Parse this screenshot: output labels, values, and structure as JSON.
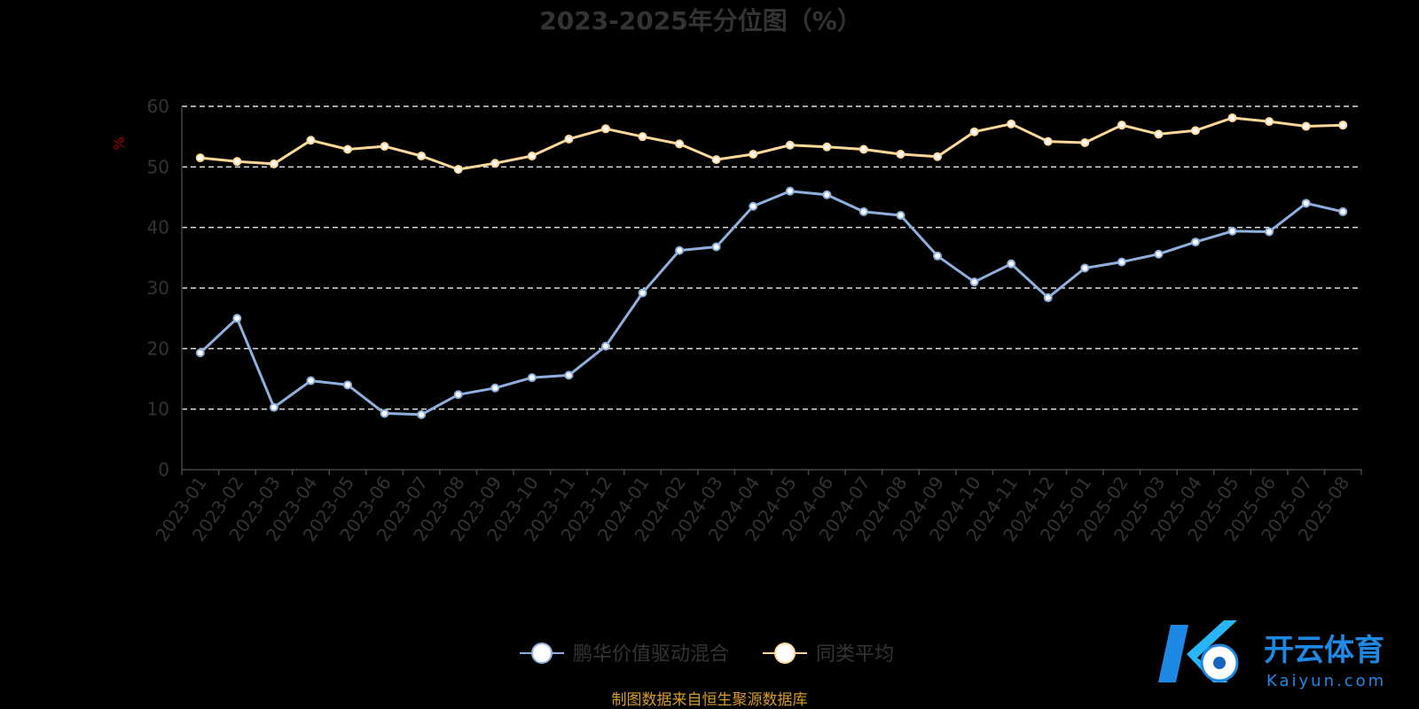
{
  "chart_data": {
    "type": "line",
    "title": "2023-2025年分位图（%）",
    "ylabel": "%",
    "ylim": [
      0,
      60
    ],
    "yticks": [
      0,
      10,
      20,
      30,
      40,
      50,
      60
    ],
    "grid": true,
    "legend_placement": "bottom-center",
    "x": [
      "2023-01",
      "2023-02",
      "2023-03",
      "2023-04",
      "2023-05",
      "2023-06",
      "2023-07",
      "2023-08",
      "2023-09",
      "2023-10",
      "2023-11",
      "2023-12",
      "2024-01",
      "2024-02",
      "2024-03",
      "2024-04",
      "2024-05",
      "2024-06",
      "2024-07",
      "2024-08",
      "2024-09",
      "2024-10",
      "2024-11",
      "2024-12",
      "2025-01",
      "2025-02",
      "2025-03",
      "2025-04",
      "2025-05",
      "2025-06",
      "2025-07",
      "2025-08"
    ],
    "series": [
      {
        "name": "鹏华价值驱动混合",
        "color": "#8fb0de",
        "values": [
          19.3,
          25.0,
          10.3,
          14.7,
          14.0,
          9.3,
          9.1,
          12.4,
          13.5,
          15.2,
          15.6,
          20.4,
          29.2,
          36.2,
          36.8,
          43.5,
          46.0,
          45.4,
          42.6,
          42.0,
          35.3,
          31.0,
          34.0,
          28.4,
          33.3,
          34.3,
          35.6,
          37.6,
          39.4,
          39.3,
          44.0,
          42.6
        ]
      },
      {
        "name": "同类平均",
        "color": "#ffd89a",
        "values": [
          51.5,
          50.9,
          50.5,
          54.4,
          52.9,
          53.4,
          51.8,
          49.6,
          50.6,
          51.8,
          54.6,
          56.3,
          55.0,
          53.8,
          51.2,
          52.1,
          53.6,
          53.3,
          52.9,
          52.1,
          51.7,
          55.8,
          57.1,
          54.2,
          54.0,
          56.9,
          55.4,
          56.0,
          58.1,
          57.5,
          56.7,
          56.9
        ]
      }
    ]
  },
  "footer": {
    "source": "制图数据来自恒生聚源数据库"
  },
  "watermark": {
    "brand": "开云体育",
    "domain": "Kaiyun.com"
  }
}
